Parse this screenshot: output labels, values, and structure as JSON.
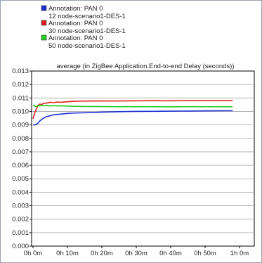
{
  "chart_data": {
    "type": "line",
    "title": "average (in ZigBee Application.End-to-end Delay (seconds))",
    "xlabel": "",
    "ylabel": "",
    "x_unit": "minutes",
    "xlim": [
      0,
      60
    ],
    "ylim": [
      0,
      0.013
    ],
    "grid": true,
    "legend_position": "top-left",
    "x_ticks": [
      {
        "value": 0,
        "label": "0h 0m"
      },
      {
        "value": 10,
        "label": "0h 10m"
      },
      {
        "value": 20,
        "label": "0h 20m"
      },
      {
        "value": 30,
        "label": "0h 30m"
      },
      {
        "value": 40,
        "label": "0h 40m"
      },
      {
        "value": 50,
        "label": "0h 50m"
      },
      {
        "value": 60,
        "label": "1h 0m"
      }
    ],
    "y_ticks": [
      {
        "value": 0,
        "label": "0.000"
      },
      {
        "value": 0.001,
        "label": "0.001"
      },
      {
        "value": 0.002,
        "label": "0.002"
      },
      {
        "value": 0.003,
        "label": "0.003"
      },
      {
        "value": 0.004,
        "label": "0.004"
      },
      {
        "value": 0.005,
        "label": "0.005"
      },
      {
        "value": 0.006,
        "label": "0.006"
      },
      {
        "value": 0.007,
        "label": "0.007"
      },
      {
        "value": 0.008,
        "label": "0.008"
      },
      {
        "value": 0.009,
        "label": "0.009"
      },
      {
        "value": 0.01,
        "label": "0.010"
      },
      {
        "value": 0.011,
        "label": "0.011"
      },
      {
        "value": 0.012,
        "label": "0.012"
      },
      {
        "value": 0.013,
        "label": "0.013"
      }
    ],
    "series": [
      {
        "name": "Annotation: PAN 0",
        "subname": "12 node-scenario1-DES-1",
        "color": "#1a2fd4",
        "x": [
          0,
          0.5,
          1,
          1.5,
          2,
          3,
          4,
          5,
          6,
          8,
          10,
          12,
          15,
          20,
          25,
          30,
          35,
          40,
          45,
          50,
          55,
          58
        ],
        "y": [
          0.009,
          0.009,
          0.00905,
          0.00915,
          0.0093,
          0.0095,
          0.00962,
          0.00968,
          0.00975,
          0.0098,
          0.00985,
          0.00988,
          0.0099,
          0.00995,
          0.00998,
          0.01,
          0.01001,
          0.01002,
          0.01003,
          0.01004,
          0.01005,
          0.01005
        ]
      },
      {
        "name": "Annotation: PAN 0",
        "subname": "30 node-scenario1-DES-1",
        "color": "#e02020",
        "x": [
          0,
          0.5,
          1,
          1.5,
          2,
          2.5,
          3,
          4,
          5,
          6,
          7,
          8,
          10,
          12,
          15,
          20,
          25,
          30,
          35,
          40,
          45,
          50,
          55,
          58
        ],
        "y": [
          0.00945,
          0.0099,
          0.0102,
          0.01045,
          0.01055,
          0.0105,
          0.0106,
          0.01062,
          0.01068,
          0.01065,
          0.0107,
          0.01068,
          0.01072,
          0.01075,
          0.01077,
          0.01078,
          0.01078,
          0.01079,
          0.0108,
          0.01079,
          0.0108,
          0.0108,
          0.0108,
          0.0108
        ]
      },
      {
        "name": "Annotation: PAN 0",
        "subname": "50 node-scenario1-DES-1",
        "color": "#22cc22",
        "x": [
          0,
          0.5,
          1,
          1.5,
          2,
          2.5,
          3,
          4,
          5,
          6,
          7,
          8,
          10,
          12,
          15,
          20,
          25,
          30,
          35,
          40,
          45,
          50,
          55,
          58
        ],
        "y": [
          0.01045,
          0.0104,
          0.01035,
          0.01045,
          0.0104,
          0.01048,
          0.01042,
          0.01044,
          0.0104,
          0.01043,
          0.01041,
          0.01042,
          0.0104,
          0.01038,
          0.01037,
          0.01036,
          0.01035,
          0.01035,
          0.01035,
          0.01034,
          0.01035,
          0.01035,
          0.01035,
          0.01034
        ]
      }
    ]
  }
}
